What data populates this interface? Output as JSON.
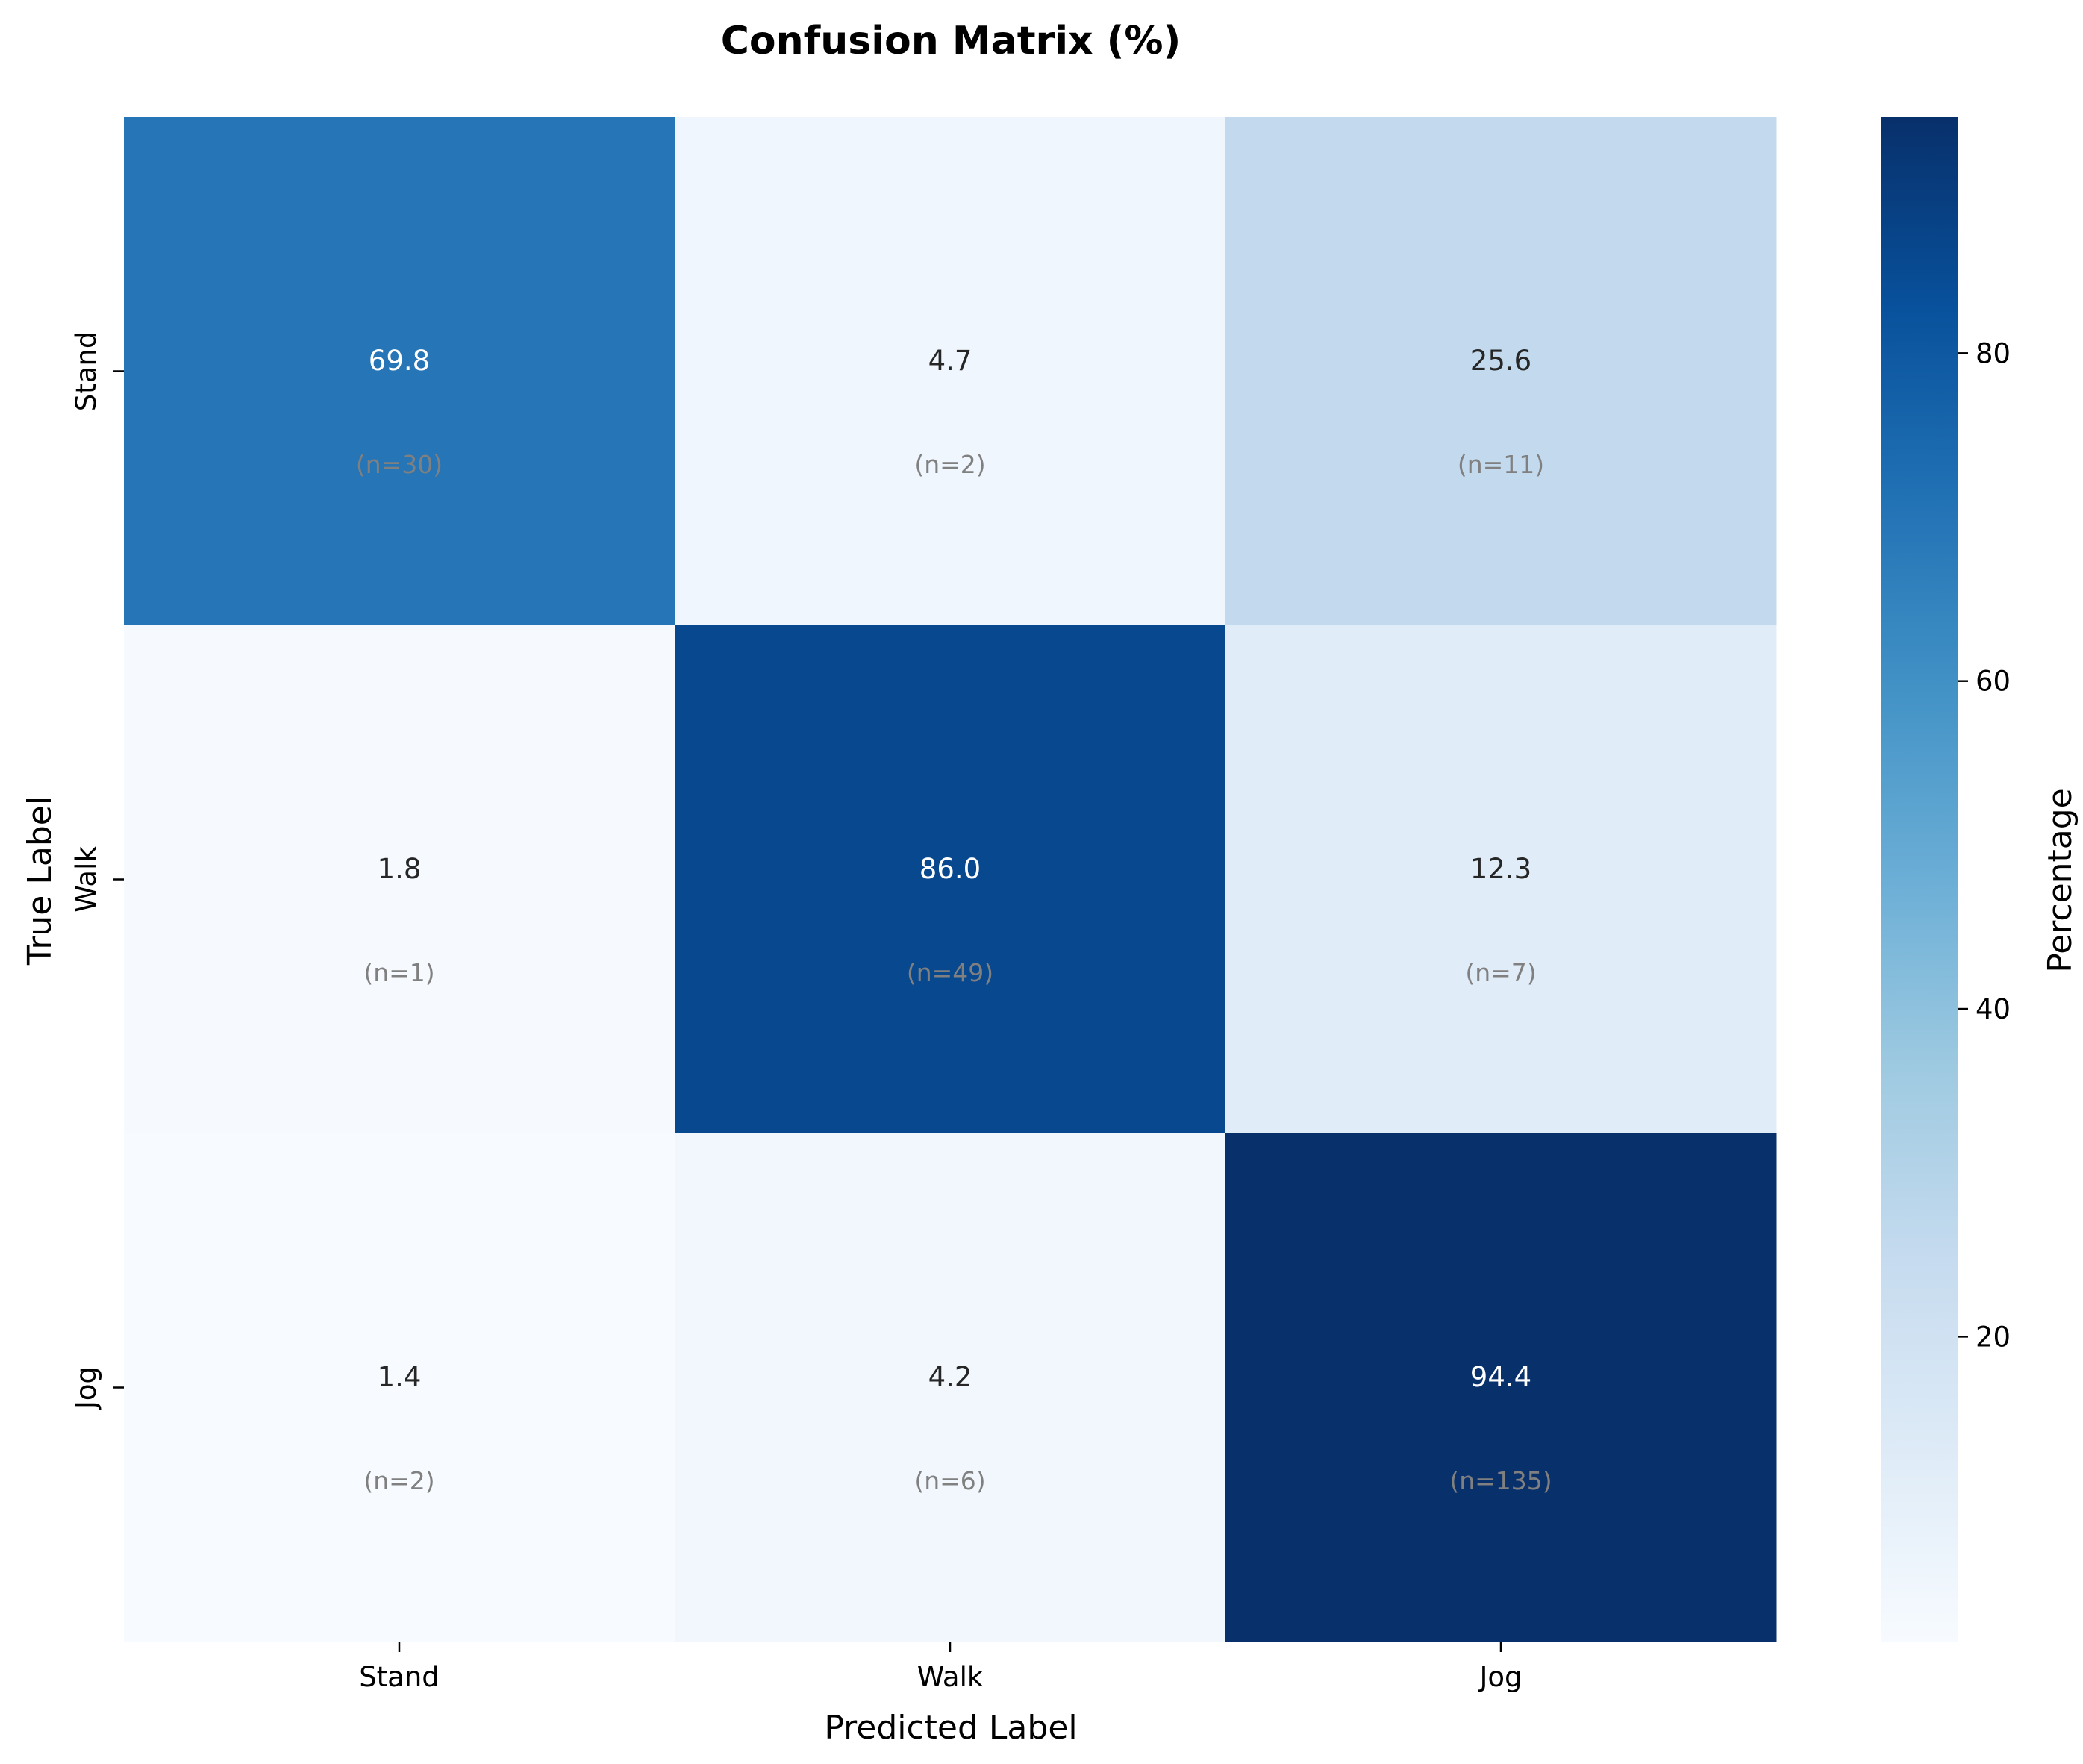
{
  "chart_data": {
    "type": "heatmap",
    "title": "Confusion Matrix (%)",
    "xlabel": "Predicted Label",
    "ylabel": "True Label",
    "x_categories": [
      "Stand",
      "Walk",
      "Jog"
    ],
    "y_categories": [
      "Stand",
      "Walk",
      "Jog"
    ],
    "values": [
      [
        69.8,
        4.7,
        25.6
      ],
      [
        1.8,
        86.0,
        12.3
      ],
      [
        1.4,
        4.2,
        94.4
      ]
    ],
    "value_labels": [
      [
        "69.8",
        "4.7",
        "25.6"
      ],
      [
        "1.8",
        "86.0",
        "12.3"
      ],
      [
        "1.4",
        "4.2",
        "94.4"
      ]
    ],
    "counts": [
      [
        "(n=30)",
        "(n=2)",
        "(n=11)"
      ],
      [
        "(n=1)",
        "(n=49)",
        "(n=7)"
      ],
      [
        "(n=2)",
        "(n=6)",
        "(n=135)"
      ]
    ],
    "colormap": "Blues",
    "colorbar": {
      "label": "Percentage",
      "range": [
        1.4,
        94.4
      ],
      "ticks": [
        20,
        40,
        60,
        80
      ],
      "tick_labels": [
        "20",
        "40",
        "60",
        "80"
      ]
    }
  }
}
